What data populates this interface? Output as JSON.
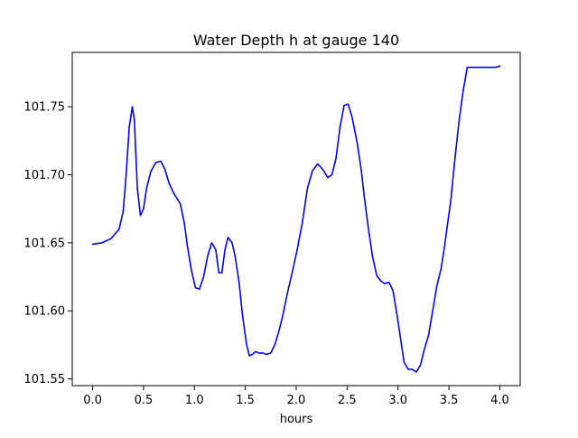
{
  "chart_data": {
    "type": "line",
    "title": "Water Depth h at gauge 140",
    "xlabel": "hours",
    "ylabel": "",
    "xlim": [
      -0.2,
      4.2
    ],
    "ylim": [
      101.545,
      101.79
    ],
    "xticks": [
      0.0,
      0.5,
      1.0,
      1.5,
      2.0,
      2.5,
      3.0,
      3.5,
      4.0
    ],
    "xtick_labels": [
      "0.0",
      "0.5",
      "1.0",
      "1.5",
      "2.0",
      "2.5",
      "3.0",
      "3.5",
      "4.0"
    ],
    "yticks": [
      101.55,
      101.6,
      101.65,
      101.7,
      101.75
    ],
    "ytick_labels": [
      "101.55",
      "101.60",
      "101.65",
      "101.70",
      "101.75"
    ],
    "grid": false,
    "series": [
      {
        "color": "#0000ff",
        "x": [
          0.0,
          0.09,
          0.18,
          0.26,
          0.3,
          0.33,
          0.36,
          0.39,
          0.41,
          0.44,
          0.47,
          0.5,
          0.53,
          0.57,
          0.62,
          0.67,
          0.71,
          0.75,
          0.8,
          0.86,
          0.9,
          0.93,
          0.97,
          1.01,
          1.05,
          1.09,
          1.13,
          1.17,
          1.21,
          1.24,
          1.27,
          1.3,
          1.33,
          1.37,
          1.4,
          1.44,
          1.47,
          1.51,
          1.54,
          1.57,
          1.6,
          1.63,
          1.67,
          1.71,
          1.75,
          1.79,
          1.83,
          1.87,
          1.91,
          1.96,
          2.01,
          2.06,
          2.11,
          2.16,
          2.21,
          2.26,
          2.31,
          2.35,
          2.39,
          2.43,
          2.47,
          2.51,
          2.55,
          2.6,
          2.64,
          2.67,
          2.71,
          2.75,
          2.79,
          2.83,
          2.87,
          2.91,
          2.95,
          2.99,
          3.03,
          3.06,
          3.1,
          3.14,
          3.18,
          3.22,
          3.26,
          3.3,
          3.34,
          3.38,
          3.42,
          3.45,
          3.48,
          3.52,
          3.56,
          3.6,
          3.64,
          3.68,
          3.72,
          3.76,
          3.8,
          3.84,
          3.88,
          3.92,
          3.96,
          4.0
        ],
        "values": [
          101.649,
          101.65,
          101.653,
          101.66,
          101.673,
          101.7,
          101.735,
          101.75,
          101.74,
          101.69,
          101.67,
          101.675,
          101.69,
          101.702,
          101.709,
          101.71,
          101.704,
          101.694,
          101.686,
          101.679,
          101.665,
          101.648,
          101.63,
          101.617,
          101.616,
          101.625,
          101.64,
          101.65,
          101.645,
          101.628,
          101.628,
          101.645,
          101.654,
          101.65,
          101.64,
          101.62,
          101.598,
          101.576,
          101.567,
          101.568,
          101.57,
          101.569,
          101.569,
          101.568,
          101.569,
          101.575,
          101.585,
          101.597,
          101.612,
          101.628,
          101.645,
          101.665,
          101.69,
          101.703,
          101.708,
          101.704,
          101.698,
          101.7,
          101.712,
          101.735,
          101.751,
          101.752,
          101.742,
          101.723,
          101.703,
          101.683,
          101.66,
          101.64,
          101.626,
          101.622,
          101.62,
          101.621,
          101.615,
          101.597,
          101.577,
          101.562,
          101.557,
          101.557,
          101.555,
          101.56,
          101.572,
          101.582,
          101.6,
          101.618,
          101.63,
          101.644,
          101.66,
          101.682,
          101.713,
          101.74,
          101.762,
          101.779,
          101.779,
          101.779,
          101.779,
          101.779,
          101.779,
          101.779,
          101.779,
          101.78
        ]
      }
    ]
  }
}
